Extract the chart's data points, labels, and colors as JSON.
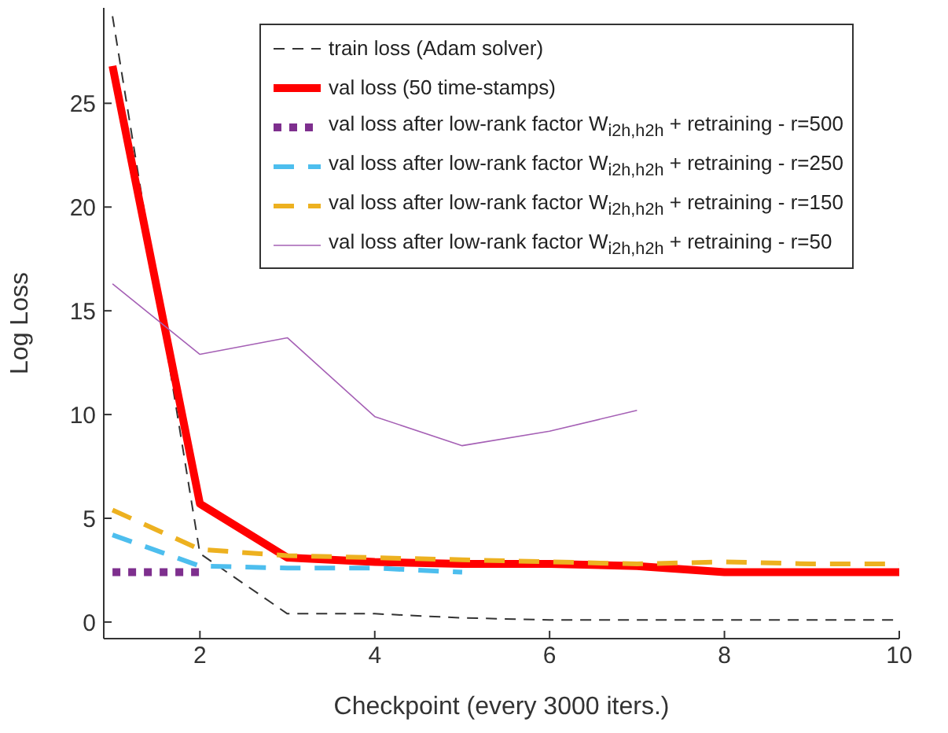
{
  "chart_data": {
    "type": "line",
    "xlabel": "Checkpoint (every 3000 iters.)",
    "ylabel": "Log Loss",
    "x": [
      1,
      2,
      3,
      4,
      5,
      6,
      7,
      8,
      9,
      10
    ],
    "xlim": [
      0.9,
      10
    ],
    "ylim": [
      -0.8,
      29.6
    ],
    "xticks": [
      2,
      4,
      6,
      8,
      10
    ],
    "yticks": [
      0,
      5,
      10,
      15,
      20,
      25
    ],
    "grid": false,
    "legend": "top right",
    "marker": "none",
    "series": [
      {
        "name": "train loss (Adam solver)",
        "color": "#333333",
        "line_style": "dashed",
        "values": [
          29.2,
          3.3,
          0.4,
          0.4,
          0.2,
          0.1,
          0.1,
          0.1,
          0.1,
          0.1
        ]
      },
      {
        "name": "val loss (50 time-stamps)",
        "color": "#ff0000",
        "line_style": "solid",
        "values": [
          26.8,
          5.7,
          3.1,
          2.9,
          2.8,
          2.8,
          2.7,
          2.4,
          2.4,
          2.4
        ]
      },
      {
        "name": "val loss after low-rank factor W$_{i2h,h2h}$ + retraining - r=500",
        "color": "#7e2f8e",
        "line_style": "dotted",
        "values": [
          2.4,
          2.4,
          null,
          null,
          null,
          null,
          null,
          null,
          null,
          null
        ]
      },
      {
        "name": "val loss after low-rank factor W$_{i2h,h2h}$ + retraining - r=250",
        "color": "#4dbeee",
        "line_style": "dashed",
        "values": [
          4.2,
          2.7,
          2.6,
          2.6,
          2.4,
          null,
          null,
          null,
          null,
          null
        ]
      },
      {
        "name": "val loss after low-rank factor W$_{i2h,h2h}$ + retraining - r=150",
        "color": "#edb120",
        "line_style": "dashed",
        "values": [
          5.4,
          3.5,
          3.2,
          3.1,
          3.0,
          2.9,
          2.8,
          2.9,
          2.8,
          2.8
        ]
      },
      {
        "name": "val loss after low-rank factor W$_{i2h,h2h}$ + retraining - r=50",
        "color": "#a560b5",
        "line_style": "solid",
        "values": [
          16.3,
          12.9,
          13.7,
          9.9,
          8.5,
          9.2,
          10.2,
          null,
          null,
          null
        ]
      }
    ]
  }
}
